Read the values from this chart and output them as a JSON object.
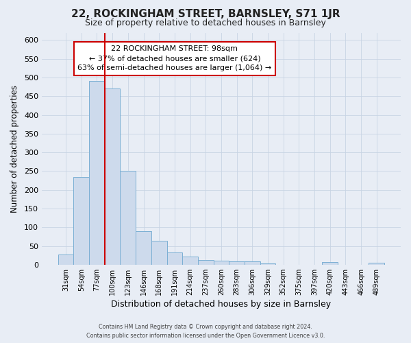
{
  "title": "22, ROCKINGHAM STREET, BARNSLEY, S71 1JR",
  "subtitle": "Size of property relative to detached houses in Barnsley",
  "xlabel": "Distribution of detached houses by size in Barnsley",
  "ylabel": "Number of detached properties",
  "bin_labels": [
    "31sqm",
    "54sqm",
    "77sqm",
    "100sqm",
    "123sqm",
    "146sqm",
    "168sqm",
    "191sqm",
    "214sqm",
    "237sqm",
    "260sqm",
    "283sqm",
    "306sqm",
    "329sqm",
    "352sqm",
    "375sqm",
    "397sqm",
    "420sqm",
    "443sqm",
    "466sqm",
    "489sqm"
  ],
  "bar_heights": [
    27,
    235,
    490,
    470,
    250,
    90,
    63,
    33,
    22,
    13,
    10,
    8,
    8,
    3,
    0,
    0,
    0,
    7,
    0,
    0,
    5
  ],
  "bar_color": "#cddaec",
  "bar_edge_color": "#7bafd4",
  "vline_color": "#cc0000",
  "vline_x_index": 3,
  "annotation_line1": "22 ROCKINGHAM STREET: 98sqm",
  "annotation_line2": "← 37% of detached houses are smaller (624)",
  "annotation_line3": "63% of semi-detached houses are larger (1,064) →",
  "annotation_box_color": "#ffffff",
  "annotation_box_edge": "#cc0000",
  "ylim": [
    0,
    620
  ],
  "yticks": [
    0,
    50,
    100,
    150,
    200,
    250,
    300,
    350,
    400,
    450,
    500,
    550,
    600
  ],
  "grid_color": "#c8d4e4",
  "background_color": "#e8edf5",
  "footer_line1": "Contains HM Land Registry data © Crown copyright and database right 2024.",
  "footer_line2": "Contains public sector information licensed under the Open Government Licence v3.0."
}
